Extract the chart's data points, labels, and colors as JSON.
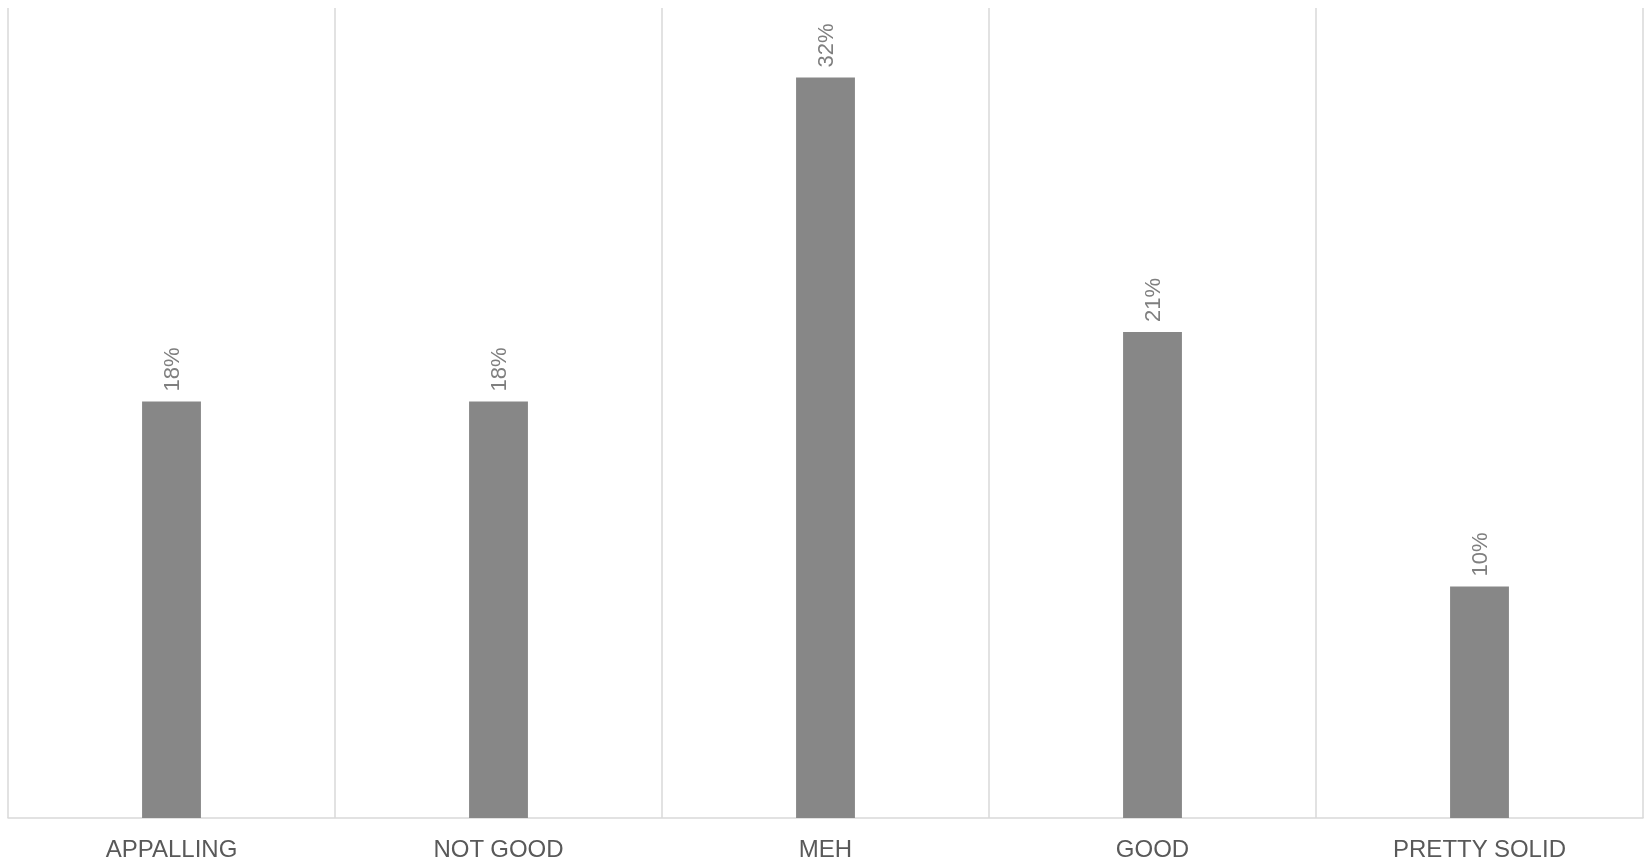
{
  "chart_data": {
    "type": "bar",
    "categories": [
      "APPALLING",
      "NOT GOOD",
      "MEH",
      "GOOD",
      "PRETTY SOLID"
    ],
    "values": [
      18,
      18,
      32,
      21,
      10
    ],
    "value_labels": [
      "18%",
      "18%",
      "32%",
      "21%",
      "10%"
    ],
    "color": "#878787",
    "grid": "x"
  }
}
